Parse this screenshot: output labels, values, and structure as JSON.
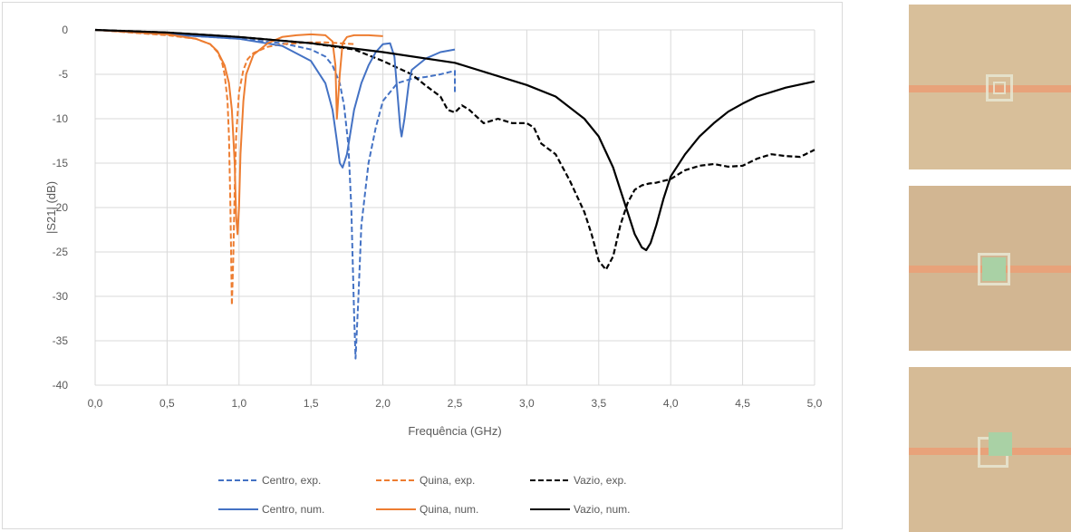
{
  "chart_data": {
    "type": "line",
    "xlabel": "Frequência (GHz)",
    "ylabel": "|S21| (dB)",
    "xlim": [
      0,
      5
    ],
    "ylim": [
      -40,
      0
    ],
    "xticks": [
      "0,0",
      "0,5",
      "1,0",
      "1,5",
      "2,0",
      "2,5",
      "3,0",
      "3,5",
      "4,0",
      "4,5",
      "5,0"
    ],
    "yticks": [
      "0",
      "-5",
      "-10",
      "-15",
      "-20",
      "-25",
      "-30",
      "-35",
      "-40"
    ],
    "grid": true,
    "legend_position": "bottom",
    "series": [
      {
        "name": "Centro, exp.",
        "color": "#4472c4",
        "dash": true,
        "x": [
          0,
          0.5,
          1.0,
          1.3,
          1.5,
          1.6,
          1.65,
          1.7,
          1.73,
          1.76,
          1.78,
          1.8,
          1.81,
          1.83,
          1.85,
          1.9,
          1.95,
          2.0,
          2.1,
          2.2,
          2.3,
          2.4,
          2.45,
          2.5,
          2.5
        ],
        "y": [
          0,
          -0.5,
          -1.0,
          -1.5,
          -2.2,
          -3.0,
          -4.0,
          -6.0,
          -8.5,
          -13.0,
          -20.0,
          -32.0,
          -37.0,
          -30.0,
          -22.0,
          -15.0,
          -11.0,
          -8.0,
          -6.0,
          -5.5,
          -5.3,
          -5.0,
          -4.8,
          -4.6,
          -7.0
        ]
      },
      {
        "name": "Quina, exp.",
        "color": "#ed7d31",
        "dash": true,
        "x": [
          0,
          0.5,
          0.7,
          0.8,
          0.85,
          0.88,
          0.9,
          0.92,
          0.93,
          0.94,
          0.95,
          0.96,
          0.97,
          0.98,
          1.0,
          1.03,
          1.06,
          1.1,
          1.2,
          1.3,
          1.4,
          1.5,
          1.6,
          1.7,
          1.8
        ],
        "y": [
          0,
          -0.6,
          -1.0,
          -1.6,
          -2.5,
          -3.5,
          -5.0,
          -8.0,
          -12.0,
          -20.0,
          -31.0,
          -26.0,
          -18.0,
          -12.0,
          -7.0,
          -4.5,
          -3.3,
          -2.6,
          -1.9,
          -1.6,
          -1.5,
          -1.4,
          -1.4,
          -1.5,
          -1.6
        ]
      },
      {
        "name": "Vazio, exp.",
        "color": "#000000",
        "dash": true,
        "x": [
          0,
          0.5,
          1.0,
          1.5,
          1.8,
          2.0,
          2.2,
          2.3,
          2.4,
          2.45,
          2.5,
          2.55,
          2.6,
          2.7,
          2.8,
          2.9,
          3.0,
          3.05,
          3.1,
          3.2,
          3.3,
          3.4,
          3.45,
          3.5,
          3.55,
          3.6,
          3.65,
          3.7,
          3.75,
          3.8,
          3.85,
          3.9,
          4.0,
          4.1,
          4.2,
          4.3,
          4.4,
          4.5,
          4.6,
          4.7,
          4.8,
          4.9,
          5.0
        ],
        "y": [
          0,
          -0.3,
          -0.8,
          -1.5,
          -2.2,
          -3.5,
          -5.0,
          -6.3,
          -7.5,
          -9.0,
          -9.3,
          -8.5,
          -9.0,
          -10.5,
          -10.0,
          -10.5,
          -10.5,
          -11.0,
          -12.8,
          -14.0,
          -17.0,
          -20.5,
          -23.0,
          -26.0,
          -27.0,
          -25.5,
          -22.0,
          -19.5,
          -18.0,
          -17.5,
          -17.3,
          -17.2,
          -16.8,
          -15.8,
          -15.3,
          -15.1,
          -15.4,
          -15.3,
          -14.5,
          -14.0,
          -14.2,
          -14.3,
          -13.5
        ]
      },
      {
        "name": "Centro, num.",
        "color": "#4472c4",
        "dash": false,
        "x": [
          0,
          0.5,
          1.0,
          1.3,
          1.5,
          1.6,
          1.65,
          1.68,
          1.7,
          1.72,
          1.75,
          1.8,
          1.85,
          1.9,
          1.95,
          2.0,
          2.05,
          2.08,
          2.1,
          2.12,
          2.13,
          2.15,
          2.18,
          2.2,
          2.3,
          2.4,
          2.5
        ],
        "y": [
          0,
          -0.5,
          -1.0,
          -1.8,
          -3.5,
          -6.0,
          -9.0,
          -12.5,
          -15.0,
          -15.5,
          -14.0,
          -9.0,
          -6.0,
          -4.0,
          -2.5,
          -1.6,
          -1.5,
          -3.0,
          -7.0,
          -11.0,
          -12.0,
          -10.0,
          -6.0,
          -4.5,
          -3.2,
          -2.5,
          -2.2
        ]
      },
      {
        "name": "Quina, num.",
        "color": "#ed7d31",
        "dash": false,
        "x": [
          0,
          0.5,
          0.7,
          0.8,
          0.85,
          0.9,
          0.93,
          0.95,
          0.97,
          0.98,
          0.99,
          1.0,
          1.01,
          1.03,
          1.05,
          1.1,
          1.2,
          1.3,
          1.4,
          1.5,
          1.6,
          1.65,
          1.67,
          1.68,
          1.7,
          1.72,
          1.75,
          1.8,
          1.9,
          2.0
        ],
        "y": [
          0,
          -0.5,
          -1.0,
          -1.6,
          -2.4,
          -4.0,
          -6.0,
          -9.0,
          -15.0,
          -21.0,
          -23.0,
          -20.0,
          -14.0,
          -8.0,
          -5.0,
          -2.8,
          -1.5,
          -0.8,
          -0.6,
          -0.5,
          -0.6,
          -1.3,
          -4.0,
          -10.0,
          -5.0,
          -1.5,
          -0.8,
          -0.6,
          -0.6,
          -0.7
        ]
      },
      {
        "name": "Vazio, num.",
        "color": "#000000",
        "dash": false,
        "x": [
          0,
          0.5,
          1.0,
          1.5,
          2.0,
          2.5,
          3.0,
          3.2,
          3.4,
          3.5,
          3.6,
          3.65,
          3.7,
          3.75,
          3.8,
          3.83,
          3.86,
          3.9,
          3.95,
          4.0,
          4.1,
          4.2,
          4.3,
          4.4,
          4.5,
          4.6,
          4.8,
          5.0
        ],
        "y": [
          0,
          -0.3,
          -0.8,
          -1.5,
          -2.5,
          -3.7,
          -6.2,
          -7.5,
          -10.0,
          -12.0,
          -15.5,
          -18.0,
          -20.5,
          -23.0,
          -24.5,
          -24.8,
          -24.0,
          -22.0,
          -19.0,
          -16.5,
          -14.0,
          -12.0,
          -10.5,
          -9.2,
          -8.3,
          -7.5,
          -6.5,
          -5.8
        ]
      }
    ]
  },
  "legend": {
    "items": [
      "Centro, exp.",
      "Quina, exp.",
      "Vazio, exp.",
      "Centro, num.",
      "Quina, num.",
      "Vazio, num."
    ]
  },
  "photos": {
    "board_color": "#d8bf9a",
    "strip_color": "#e8a27a",
    "ring_color": "#e7e6d2",
    "patch_color": "#a9d1a5"
  }
}
